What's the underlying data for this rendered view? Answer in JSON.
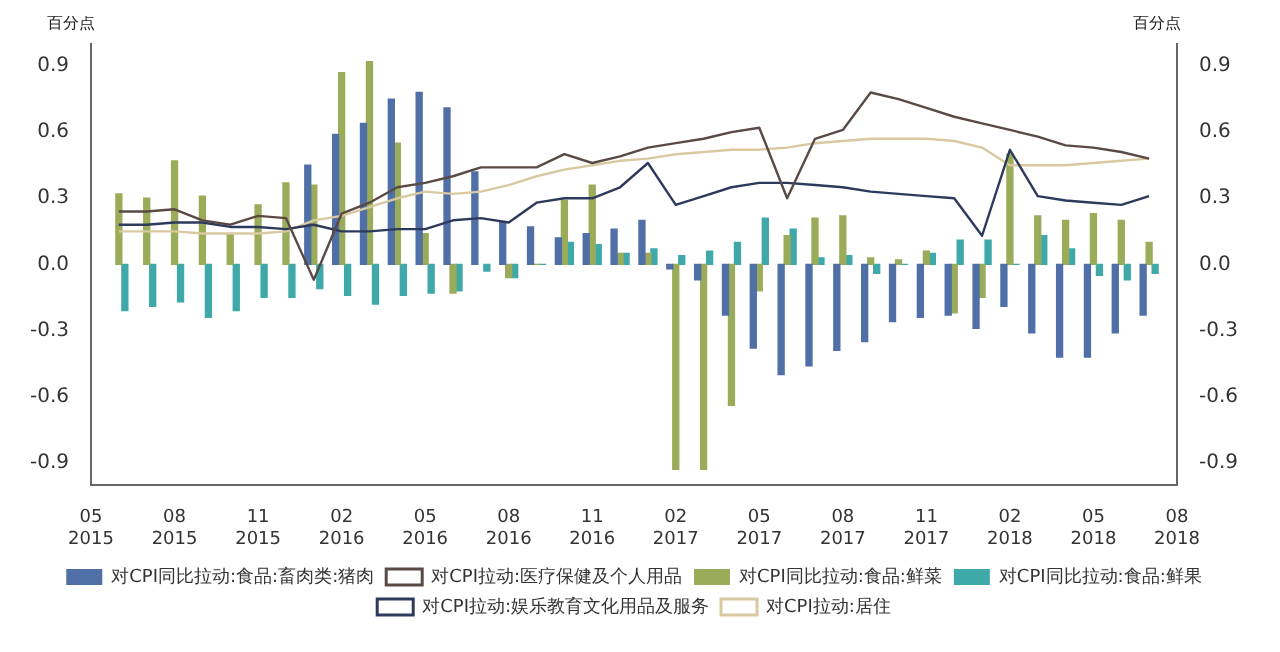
{
  "chart_data": {
    "type": "bar",
    "ylabel": "百分点",
    "y2label": "百分点",
    "x": [
      "2015-06",
      "2015-07",
      "2015-08",
      "2015-09",
      "2015-10",
      "2015-11",
      "2015-12",
      "2016-01",
      "2016-02",
      "2016-03",
      "2016-04",
      "2016-05",
      "2016-06",
      "2016-07",
      "2016-08",
      "2016-09",
      "2016-10",
      "2016-11",
      "2016-12",
      "2017-01",
      "2017-02",
      "2017-03",
      "2017-04",
      "2017-05",
      "2017-06",
      "2017-07",
      "2017-08",
      "2017-09",
      "2017-10",
      "2017-11",
      "2017-12",
      "2018-01",
      "2018-02",
      "2018-03",
      "2018-04",
      "2018-05",
      "2018-06",
      "2018-07"
    ],
    "series": [
      {
        "name": "对CPI同比拉动:食品:畜肉类:猪肉",
        "color": "#4f6fa6",
        "values": [
          null,
          null,
          null,
          null,
          null,
          null,
          null,
          0.45,
          0.59,
          0.64,
          0.75,
          0.78,
          0.71,
          0.42,
          0.19,
          0.17,
          0.12,
          0.14,
          0.16,
          0.2,
          -0.02,
          -0.07,
          -0.23,
          -0.38,
          -0.5,
          -0.46,
          -0.39,
          -0.35,
          -0.26,
          -0.24,
          -0.23,
          -0.29,
          -0.19,
          -0.31,
          -0.42,
          -0.42,
          -0.31,
          -0.23
        ]
      },
      {
        "name": "对CPI拉动:医疗保健及个人用品",
        "type": "line",
        "color": "#5a4a46",
        "values": [
          0.24,
          0.24,
          0.25,
          0.2,
          0.18,
          0.22,
          0.21,
          -0.07,
          0.23,
          0.28,
          0.35,
          0.37,
          0.4,
          0.44,
          0.44,
          0.44,
          0.5,
          0.46,
          0.49,
          0.53,
          0.55,
          0.57,
          0.6,
          0.62,
          0.3,
          0.57,
          0.61,
          0.78,
          0.75,
          0.71,
          0.67,
          0.64,
          0.61,
          0.58,
          0.54,
          0.53,
          0.51,
          0.48
        ]
      },
      {
        "name": "对CPI同比拉动:食品:鲜菜",
        "color": "#9aac5a",
        "values": [
          0.32,
          0.3,
          0.47,
          0.31,
          0.14,
          0.27,
          0.37,
          0.36,
          0.87,
          0.92,
          0.55,
          0.14,
          -0.13,
          null,
          -0.06,
          0.0,
          0.29,
          0.36,
          0.05,
          0.05,
          -0.93,
          -0.93,
          -0.64,
          -0.12,
          0.13,
          0.21,
          0.22,
          0.03,
          0.02,
          0.06,
          -0.22,
          -0.15,
          0.5,
          0.22,
          0.2,
          0.23,
          0.2,
          0.1
        ]
      },
      {
        "name": "对CPI同比拉动:食品:鲜果",
        "color": "#3fa9a9",
        "values": [
          -0.21,
          -0.19,
          -0.17,
          -0.24,
          -0.21,
          -0.15,
          -0.15,
          -0.11,
          -0.14,
          -0.18,
          -0.14,
          -0.13,
          -0.12,
          -0.03,
          -0.06,
          0.0,
          0.1,
          0.09,
          0.05,
          0.07,
          0.04,
          0.06,
          0.1,
          0.21,
          0.16,
          0.03,
          0.04,
          -0.04,
          0.0,
          0.05,
          0.11,
          0.11,
          0.0,
          0.13,
          0.07,
          -0.05,
          -0.07,
          -0.04
        ]
      },
      {
        "name": "对CPI拉动:娱乐教育文化用品及服务",
        "type": "line",
        "color": "#2e3a5c",
        "values": [
          0.18,
          0.18,
          0.19,
          0.19,
          0.17,
          0.17,
          0.16,
          0.18,
          0.15,
          0.15,
          0.16,
          0.16,
          0.2,
          0.21,
          0.19,
          0.28,
          0.3,
          0.3,
          0.35,
          0.46,
          0.27,
          0.31,
          0.35,
          0.37,
          0.37,
          0.36,
          0.35,
          0.33,
          0.32,
          0.31,
          0.3,
          0.13,
          0.52,
          0.31,
          0.29,
          0.28,
          0.27,
          0.31
        ]
      },
      {
        "name": "对CPI拉动:居住",
        "type": "line",
        "color": "#d9c9a0",
        "values": [
          0.15,
          0.15,
          0.15,
          0.14,
          0.14,
          0.14,
          0.15,
          0.2,
          0.22,
          0.26,
          0.3,
          0.33,
          0.32,
          0.33,
          0.36,
          0.4,
          0.43,
          0.45,
          0.47,
          0.48,
          0.5,
          0.51,
          0.52,
          0.52,
          0.53,
          0.55,
          0.56,
          0.57,
          0.57,
          0.57,
          0.56,
          0.53,
          0.45,
          0.45,
          0.45,
          0.46,
          0.47,
          0.48
        ]
      }
    ],
    "xlim": [
      "2015-05",
      "2018-08"
    ],
    "xticks": [
      {
        "value": "2015-05",
        "label": "05 2015"
      },
      {
        "value": "2015-08",
        "label": "08 2015"
      },
      {
        "value": "2015-11",
        "label": "11 2015"
      },
      {
        "value": "2016-02",
        "label": "02 2016"
      },
      {
        "value": "2016-05",
        "label": "05 2016"
      },
      {
        "value": "2016-08",
        "label": "08 2016"
      },
      {
        "value": "2016-11",
        "label": "11 2016"
      },
      {
        "value": "2017-02",
        "label": "02 2017"
      },
      {
        "value": "2017-05",
        "label": "05 2017"
      },
      {
        "value": "2017-08",
        "label": "08 2017"
      },
      {
        "value": "2017-11",
        "label": "11 2017"
      },
      {
        "value": "2018-02",
        "label": "02 2018"
      },
      {
        "value": "2018-05",
        "label": "05 2018"
      },
      {
        "value": "2018-08",
        "label": "08 2018"
      }
    ],
    "ylim": [
      -1.0,
      1.0
    ],
    "yticks": [
      -0.9,
      -0.6,
      -0.3,
      {
        "value": 0,
        "label": "0.0"
      },
      0.3,
      0.6,
      0.9
    ],
    "y2lim": [
      -1.0,
      1.0
    ],
    "y2ticks": [
      -0.9,
      -0.6,
      -0.3,
      {
        "value": 0,
        "label": "0.0"
      },
      0.3,
      0.6,
      0.9
    ],
    "grid": false,
    "legend": "bottom",
    "marker": "none",
    "line_style": "solid"
  }
}
